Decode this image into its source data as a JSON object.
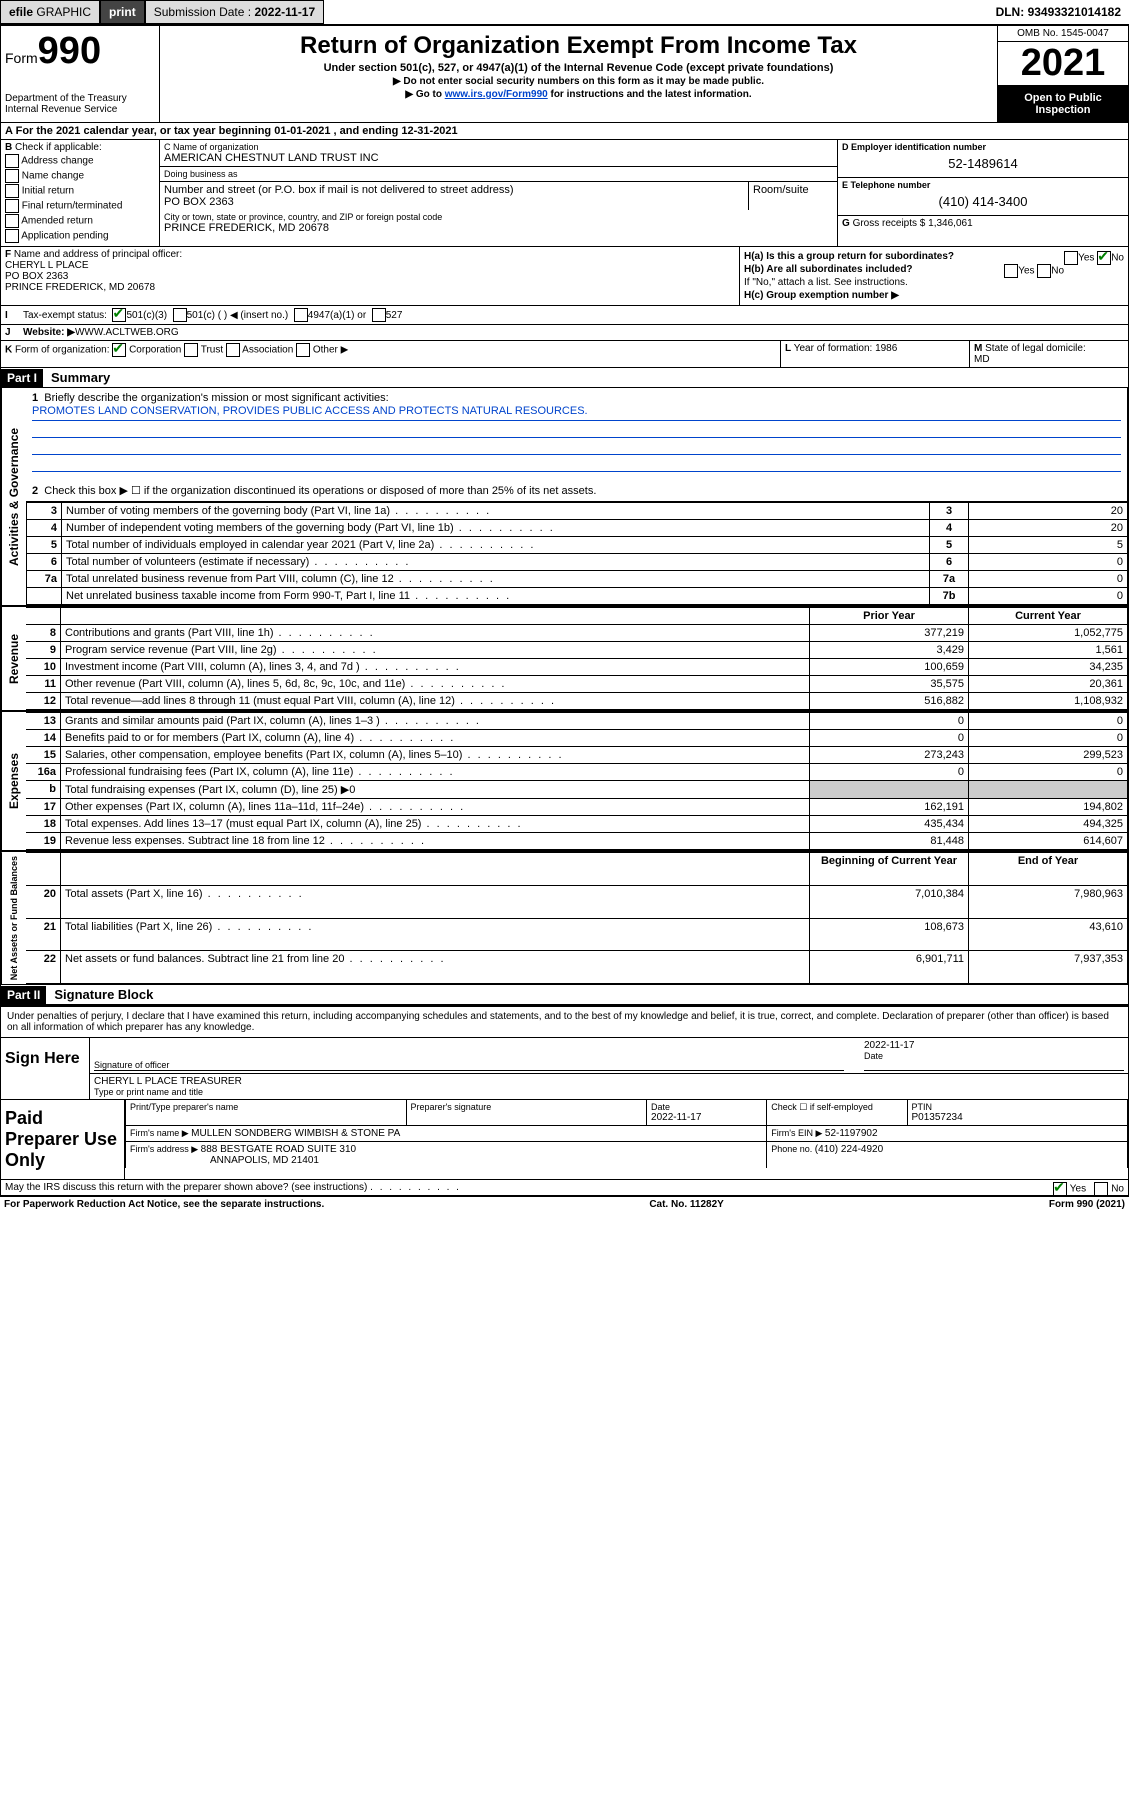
{
  "top_bar": {
    "efile_prefix": "efile",
    "graphic": "GRAPHIC",
    "print": "print",
    "submission_label": "Submission Date : ",
    "submission_date": "2022-11-17",
    "dln_label": "DLN: ",
    "dln": "93493321014182"
  },
  "header": {
    "form_word": "Form",
    "form_number": "990",
    "dept": "Department of the Treasury",
    "irs": "Internal Revenue Service",
    "title": "Return of Organization Exempt From Income Tax",
    "subtitle": "Under section 501(c), 527, or 4947(a)(1) of the Internal Revenue Code (except private foundations)",
    "note1": "▶ Do not enter social security numbers on this form as it may be made public.",
    "note2_prefix": "▶ Go to ",
    "note2_link": "www.irs.gov/Form990",
    "note2_suffix": " for instructions and the latest information.",
    "omb": "OMB No. 1545-0047",
    "year": "2021",
    "inspect1": "Open to Public",
    "inspect2": "Inspection"
  },
  "row_a": {
    "label": "A",
    "text": "For the 2021 calendar year, or tax year beginning ",
    "begin": "01-01-2021",
    "mid": " , and ending ",
    "end": "12-31-2021"
  },
  "col_b": {
    "label": "B",
    "text": "Check if applicable:",
    "opts": [
      "Address change",
      "Name change",
      "Initial return",
      "Final return/terminated",
      "Amended return",
      "Application pending"
    ]
  },
  "col_c": {
    "name_label": "C Name of organization",
    "name": "AMERICAN CHESTNUT LAND TRUST INC",
    "dba_label": "Doing business as",
    "dba": "",
    "street_label": "Number and street (or P.O. box if mail is not delivered to street address)",
    "street": "PO BOX 2363",
    "room_label": "Room/suite",
    "room": "",
    "city_label": "City or town, state or province, country, and ZIP or foreign postal code",
    "city": "PRINCE FREDERICK, MD  20678"
  },
  "col_d": {
    "label": "D Employer identification number",
    "val": "52-1489614"
  },
  "col_e": {
    "label": "E Telephone number",
    "val": "(410) 414-3400"
  },
  "col_g": {
    "label": "G",
    "text": "Gross receipts $ ",
    "val": "1,346,061"
  },
  "col_f": {
    "label": "F",
    "text": "Name and address of principal officer:",
    "name": "CHERYL L PLACE",
    "addr1": "PO BOX 2363",
    "addr2": "PRINCE FREDERICK, MD  20678"
  },
  "col_h": {
    "h_a": "H(a)  Is this a group return for subordinates?",
    "h_a_yes": "Yes",
    "h_a_no": "No",
    "h_b": "H(b)  Are all subordinates included?",
    "h_b_yes": "Yes",
    "h_b_no": "No",
    "h_b_note": "If \"No,\" attach a list. See instructions.",
    "h_c": "H(c)  Group exemption number ▶"
  },
  "row_i": {
    "label": "I",
    "text": "Tax-exempt status:",
    "o1": "501(c)(3)",
    "o2": "501(c) (   ) ◀ (insert no.)",
    "o3": "4947(a)(1) or",
    "o4": "527"
  },
  "row_j": {
    "label": "J",
    "text": "Website: ▶ ",
    "val": "WWW.ACLTWEB.ORG"
  },
  "row_klm": {
    "k_label": "K",
    "k_text": "Form of organization:",
    "k_o1": "Corporation",
    "k_o2": "Trust",
    "k_o3": "Association",
    "k_o4": "Other ▶",
    "l_label": "L",
    "l_text": "Year of formation: ",
    "l_val": "1986",
    "m_label": "M",
    "m_text": "State of legal domicile:",
    "m_val": "MD"
  },
  "part1": {
    "header": "Part I",
    "title": "Summary",
    "q1": "Briefly describe the organization's mission or most significant activities:",
    "q1_val": "PROMOTES LAND CONSERVATION, PROVIDES PUBLIC ACCESS AND PROTECTS NATURAL RESOURCES.",
    "q2": "Check this box ▶ ☐  if the organization discontinued its operations or disposed of more than 25% of its net assets."
  },
  "governance_rows": [
    {
      "n": "3",
      "desc": "Number of voting members of the governing body (Part VI, line 1a)",
      "box": "3",
      "val": "20"
    },
    {
      "n": "4",
      "desc": "Number of independent voting members of the governing body (Part VI, line 1b)",
      "box": "4",
      "val": "20"
    },
    {
      "n": "5",
      "desc": "Total number of individuals employed in calendar year 2021 (Part V, line 2a)",
      "box": "5",
      "val": "5"
    },
    {
      "n": "6",
      "desc": "Total number of volunteers (estimate if necessary)",
      "box": "6",
      "val": "0"
    },
    {
      "n": "7a",
      "desc": "Total unrelated business revenue from Part VIII, column (C), line 12",
      "box": "7a",
      "val": "0"
    },
    {
      "n": "",
      "desc": "Net unrelated business taxable income from Form 990-T, Part I, line 11",
      "box": "7b",
      "val": "0"
    }
  ],
  "two_col_header": {
    "n": "b",
    "prior": "Prior Year",
    "current": "Current Year"
  },
  "revenue_rows": [
    {
      "n": "8",
      "desc": "Contributions and grants (Part VIII, line 1h)",
      "prior": "377,219",
      "current": "1,052,775"
    },
    {
      "n": "9",
      "desc": "Program service revenue (Part VIII, line 2g)",
      "prior": "3,429",
      "current": "1,561"
    },
    {
      "n": "10",
      "desc": "Investment income (Part VIII, column (A), lines 3, 4, and 7d )",
      "prior": "100,659",
      "current": "34,235"
    },
    {
      "n": "11",
      "desc": "Other revenue (Part VIII, column (A), lines 5, 6d, 8c, 9c, 10c, and 11e)",
      "prior": "35,575",
      "current": "20,361"
    },
    {
      "n": "12",
      "desc": "Total revenue—add lines 8 through 11 (must equal Part VIII, column (A), line 12)",
      "prior": "516,882",
      "current": "1,108,932"
    }
  ],
  "expense_rows": [
    {
      "n": "13",
      "desc": "Grants and similar amounts paid (Part IX, column (A), lines 1–3 )",
      "prior": "0",
      "current": "0"
    },
    {
      "n": "14",
      "desc": "Benefits paid to or for members (Part IX, column (A), line 4)",
      "prior": "0",
      "current": "0"
    },
    {
      "n": "15",
      "desc": "Salaries, other compensation, employee benefits (Part IX, column (A), lines 5–10)",
      "prior": "273,243",
      "current": "299,523"
    },
    {
      "n": "16a",
      "desc": "Professional fundraising fees (Part IX, column (A), line 11e)",
      "prior": "0",
      "current": "0"
    },
    {
      "n": "b",
      "desc": "Total fundraising expenses (Part IX, column (D), line 25) ▶0",
      "prior": "",
      "current": "",
      "shaded": true
    },
    {
      "n": "17",
      "desc": "Other expenses (Part IX, column (A), lines 11a–11d, 11f–24e)",
      "prior": "162,191",
      "current": "194,802"
    },
    {
      "n": "18",
      "desc": "Total expenses. Add lines 13–17 (must equal Part IX, column (A), line 25)",
      "prior": "435,434",
      "current": "494,325"
    },
    {
      "n": "19",
      "desc": "Revenue less expenses. Subtract line 18 from line 12",
      "prior": "81,448",
      "current": "614,607"
    }
  ],
  "netassets_header": {
    "prior": "Beginning of Current Year",
    "current": "End of Year"
  },
  "netassets_rows": [
    {
      "n": "20",
      "desc": "Total assets (Part X, line 16)",
      "prior": "7,010,384",
      "current": "7,980,963"
    },
    {
      "n": "21",
      "desc": "Total liabilities (Part X, line 26)",
      "prior": "108,673",
      "current": "43,610"
    },
    {
      "n": "22",
      "desc": "Net assets or fund balances. Subtract line 21 from line 20",
      "prior": "6,901,711",
      "current": "7,937,353"
    }
  ],
  "part2": {
    "header": "Part II",
    "title": "Signature Block",
    "penalties": "Under penalties of perjury, I declare that I have examined this return, including accompanying schedules and statements, and to the best of my knowledge and belief, it is true, correct, and complete. Declaration of preparer (other than officer) is based on all information of which preparer has any knowledge."
  },
  "sign_here": {
    "label": "Sign Here",
    "sig_label": "Signature of officer",
    "date_label": "Date",
    "date_val": "2022-11-17",
    "name": "CHERYL L PLACE  TREASURER",
    "name_label": "Type or print name and title"
  },
  "paid_preparer": {
    "label": "Paid Preparer Use Only",
    "h1": "Print/Type preparer's name",
    "h2": "Preparer's signature",
    "h3_label": "Date",
    "h3_val": "2022-11-17",
    "h4_label": "Check ☐ if self-employed",
    "h5_label": "PTIN",
    "h5_val": "P01357234",
    "firm_name_label": "Firm's name      ▶ ",
    "firm_name": "MULLEN SONDBERG WIMBISH & STONE PA",
    "firm_ein_label": "Firm's EIN ▶ ",
    "firm_ein": "52-1197902",
    "firm_addr_label": "Firm's address ▶ ",
    "firm_addr1": "888 BESTGATE ROAD SUITE 310",
    "firm_addr2": "ANNAPOLIS, MD  21401",
    "phone_label": "Phone no. ",
    "phone": "(410) 224-4920"
  },
  "discuss": {
    "text": "May the IRS discuss this return with the preparer shown above? (see instructions)",
    "yes": "Yes",
    "no": "No"
  },
  "footer": {
    "left": "For Paperwork Reduction Act Notice, see the separate instructions.",
    "center": "Cat. No. 11282Y",
    "right_prefix": "Form ",
    "right_form": "990",
    "right_suffix": " (2021)"
  },
  "vtabs": {
    "gov": "Activities & Governance",
    "rev": "Revenue",
    "exp": "Expenses",
    "net": "Net Assets or Fund Balances"
  }
}
